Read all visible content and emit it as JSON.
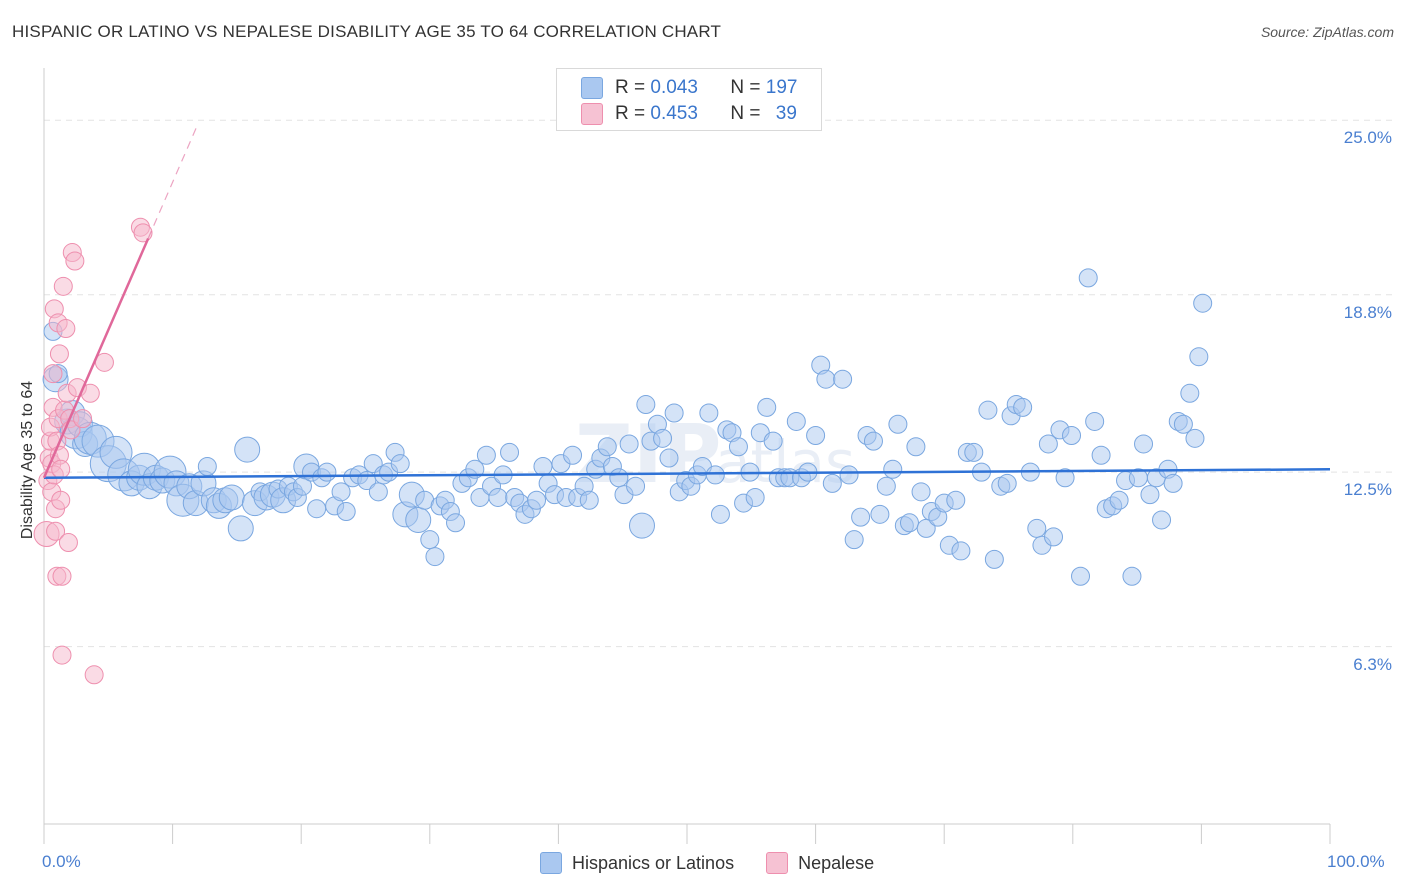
{
  "header": {
    "title": "HISPANIC OR LATINO VS NEPALESE DISABILITY AGE 35 TO 64 CORRELATION CHART",
    "source": "Source: ZipAtlas.com"
  },
  "legend_top": {
    "rows": [
      {
        "r_label": "R =",
        "r_value": "0.043",
        "n_label": "N =",
        "n_value": "197"
      },
      {
        "r_label": "R =",
        "r_value": "0.453",
        "n_label": "N =",
        "n_value": "39"
      }
    ]
  },
  "legend_bottom": {
    "items": [
      "Hispanics or Latinos",
      "Nepalese"
    ]
  },
  "colors": {
    "blue_fill": "#aac8f0",
    "blue_stroke": "#7aa7e0",
    "blue_line": "#2f72d6",
    "pink_fill": "#f6b8cb",
    "pink_stroke": "#ee8fae",
    "pink_line": "#e0689a",
    "tick_text": "#4a7fd0",
    "grid": "#e3e3e3"
  },
  "chart_data": {
    "type": "scatter",
    "title": "HISPANIC OR LATINO VS NEPALESE DISABILITY AGE 35 TO 64 CORRELATION CHART",
    "xlabel": "",
    "ylabel": "Disability Age 35 to 64",
    "xlim": [
      0,
      100
    ],
    "ylim": [
      0,
      26.5
    ],
    "x_ticks": [
      "0.0%",
      "100.0%"
    ],
    "y_ticks": [
      {
        "value": 6.3,
        "label": "6.3%"
      },
      {
        "value": 12.5,
        "label": "12.5%"
      },
      {
        "value": 18.8,
        "label": "18.8%"
      },
      {
        "value": 25.0,
        "label": "25.0%"
      }
    ],
    "grid": true,
    "series": [
      {
        "name": "Hispanics or Latinos",
        "r": 0.043,
        "n": 197,
        "trend": {
          "x0": 0,
          "y0": 12.3,
          "x1": 100,
          "y1": 12.6
        },
        "points": [
          [
            0.7,
            17.5,
            1
          ],
          [
            0.9,
            15.8,
            2
          ],
          [
            1.1,
            16.0,
            1
          ],
          [
            1.8,
            14.3,
            2
          ],
          [
            2.2,
            14.6,
            2
          ],
          [
            2.5,
            13.9,
            3
          ],
          [
            2.8,
            14.2,
            2
          ],
          [
            3.2,
            13.5,
            2
          ],
          [
            3.6,
            13.7,
            3
          ],
          [
            4.2,
            13.6,
            3
          ],
          [
            5.0,
            12.8,
            4
          ],
          [
            5.6,
            13.2,
            3
          ],
          [
            6.2,
            12.4,
            3
          ],
          [
            6.8,
            12.1,
            2
          ],
          [
            7.4,
            12.3,
            2
          ],
          [
            7.8,
            12.6,
            3
          ],
          [
            8.2,
            12.0,
            2
          ],
          [
            8.7,
            12.3,
            2
          ],
          [
            9.2,
            12.2,
            2
          ],
          [
            9.8,
            12.5,
            3
          ],
          [
            10.3,
            12.1,
            2
          ],
          [
            10.8,
            11.5,
            3
          ],
          [
            11.3,
            12.0,
            2
          ],
          [
            11.8,
            11.4,
            2
          ],
          [
            12.4,
            12.1,
            2
          ],
          [
            12.7,
            12.7,
            1
          ],
          [
            13.2,
            11.5,
            2
          ],
          [
            13.6,
            11.3,
            2
          ],
          [
            14.1,
            11.5,
            2
          ],
          [
            14.6,
            11.6,
            2
          ],
          [
            15.3,
            10.5,
            2
          ],
          [
            15.8,
            13.3,
            2
          ],
          [
            16.4,
            11.4,
            2
          ],
          [
            16.8,
            11.8,
            1
          ],
          [
            17.3,
            11.6,
            2
          ],
          [
            17.8,
            11.7,
            2
          ],
          [
            18.2,
            11.9,
            1
          ],
          [
            18.6,
            11.5,
            2
          ],
          [
            19.0,
            12.0,
            1
          ],
          [
            19.4,
            11.8,
            1
          ],
          [
            19.7,
            11.6,
            1
          ],
          [
            20.1,
            12.0,
            1
          ],
          [
            20.4,
            12.7,
            2
          ],
          [
            20.8,
            12.5,
            1
          ],
          [
            21.2,
            11.2,
            1
          ],
          [
            21.6,
            12.3,
            1
          ],
          [
            22.0,
            12.5,
            1
          ],
          [
            22.6,
            11.3,
            1
          ],
          [
            23.1,
            11.8,
            1
          ],
          [
            23.5,
            11.1,
            1
          ],
          [
            24.0,
            12.3,
            1
          ],
          [
            24.5,
            12.4,
            1
          ],
          [
            25.1,
            12.2,
            1
          ],
          [
            25.6,
            12.8,
            1
          ],
          [
            26.0,
            11.8,
            1
          ],
          [
            26.4,
            12.4,
            1
          ],
          [
            26.8,
            12.5,
            1
          ],
          [
            27.3,
            13.2,
            1
          ],
          [
            27.7,
            12.8,
            1
          ],
          [
            28.1,
            11.0,
            2
          ],
          [
            28.6,
            11.7,
            2
          ],
          [
            29.1,
            10.8,
            2
          ],
          [
            29.6,
            11.5,
            1
          ],
          [
            30.0,
            10.1,
            1
          ],
          [
            30.4,
            9.5,
            1
          ],
          [
            30.8,
            11.3,
            1
          ],
          [
            31.2,
            11.5,
            1
          ],
          [
            31.6,
            11.1,
            1
          ],
          [
            32.0,
            10.7,
            1
          ],
          [
            32.5,
            12.1,
            1
          ],
          [
            33.0,
            12.3,
            1
          ],
          [
            33.5,
            12.6,
            1
          ],
          [
            33.9,
            11.6,
            1
          ],
          [
            34.4,
            13.1,
            1
          ],
          [
            34.8,
            12.0,
            1
          ],
          [
            35.3,
            11.6,
            1
          ],
          [
            35.7,
            12.4,
            1
          ],
          [
            36.2,
            13.2,
            1
          ],
          [
            36.6,
            11.6,
            1
          ],
          [
            37.0,
            11.4,
            1
          ],
          [
            37.4,
            11.0,
            1
          ],
          [
            37.9,
            11.2,
            1
          ],
          [
            38.3,
            11.5,
            1
          ],
          [
            38.8,
            12.7,
            1
          ],
          [
            39.2,
            12.1,
            1
          ],
          [
            39.7,
            11.7,
            1
          ],
          [
            40.2,
            12.8,
            1
          ],
          [
            40.6,
            11.6,
            1
          ],
          [
            41.1,
            13.1,
            1
          ],
          [
            41.5,
            11.6,
            1
          ],
          [
            42.0,
            12.0,
            1
          ],
          [
            42.4,
            11.5,
            1
          ],
          [
            42.9,
            12.6,
            1
          ],
          [
            43.3,
            13.0,
            1
          ],
          [
            43.8,
            13.4,
            1
          ],
          [
            44.2,
            12.7,
            1
          ],
          [
            44.7,
            12.3,
            1
          ],
          [
            45.1,
            11.7,
            1
          ],
          [
            45.5,
            13.5,
            1
          ],
          [
            46.0,
            12.0,
            1
          ],
          [
            46.5,
            10.6,
            2
          ],
          [
            46.8,
            14.9,
            1
          ],
          [
            47.2,
            13.6,
            1
          ],
          [
            47.7,
            14.2,
            1
          ],
          [
            48.1,
            13.7,
            1
          ],
          [
            48.6,
            13.0,
            1
          ],
          [
            49.0,
            14.6,
            1
          ],
          [
            49.4,
            11.8,
            1
          ],
          [
            49.9,
            12.2,
            1
          ],
          [
            50.3,
            12.0,
            1
          ],
          [
            50.8,
            12.4,
            1
          ],
          [
            51.2,
            12.7,
            1
          ],
          [
            51.7,
            14.6,
            1
          ],
          [
            52.2,
            12.4,
            1
          ],
          [
            52.6,
            11.0,
            1
          ],
          [
            53.1,
            14.0,
            1
          ],
          [
            53.5,
            13.9,
            1
          ],
          [
            54.0,
            13.4,
            1
          ],
          [
            54.4,
            11.4,
            1
          ],
          [
            54.9,
            12.5,
            1
          ],
          [
            55.3,
            11.6,
            1
          ],
          [
            55.7,
            13.9,
            1
          ],
          [
            56.2,
            14.8,
            1
          ],
          [
            56.7,
            13.6,
            1
          ],
          [
            57.1,
            12.3,
            1
          ],
          [
            57.6,
            12.3,
            1
          ],
          [
            58.0,
            12.3,
            1
          ],
          [
            58.5,
            14.3,
            1
          ],
          [
            58.9,
            12.3,
            1
          ],
          [
            59.4,
            12.5,
            1
          ],
          [
            60.0,
            13.8,
            1
          ],
          [
            60.4,
            16.3,
            1
          ],
          [
            60.8,
            15.8,
            1
          ],
          [
            61.3,
            12.1,
            1
          ],
          [
            62.1,
            15.8,
            1
          ],
          [
            62.6,
            12.4,
            1
          ],
          [
            63.0,
            10.1,
            1
          ],
          [
            63.5,
            10.9,
            1
          ],
          [
            64.0,
            13.8,
            1
          ],
          [
            64.5,
            13.6,
            1
          ],
          [
            65.0,
            11.0,
            1
          ],
          [
            65.5,
            12.0,
            1
          ],
          [
            66.0,
            12.6,
            1
          ],
          [
            66.4,
            14.2,
            1
          ],
          [
            66.9,
            10.6,
            1
          ],
          [
            67.3,
            10.7,
            1
          ],
          [
            67.8,
            13.4,
            1
          ],
          [
            68.2,
            11.8,
            1
          ],
          [
            68.6,
            10.5,
            1
          ],
          [
            69.0,
            11.1,
            1
          ],
          [
            69.5,
            10.9,
            1
          ],
          [
            70.0,
            11.4,
            1
          ],
          [
            70.4,
            9.9,
            1
          ],
          [
            70.9,
            11.5,
            1
          ],
          [
            71.3,
            9.7,
            1
          ],
          [
            71.8,
            13.2,
            1
          ],
          [
            72.3,
            13.2,
            1
          ],
          [
            72.9,
            12.5,
            1
          ],
          [
            73.4,
            14.7,
            1
          ],
          [
            73.9,
            9.4,
            1
          ],
          [
            74.4,
            12.0,
            1
          ],
          [
            74.9,
            12.1,
            1
          ],
          [
            75.2,
            14.5,
            1
          ],
          [
            75.6,
            14.9,
            1
          ],
          [
            76.1,
            14.8,
            1
          ],
          [
            76.7,
            12.5,
            1
          ],
          [
            77.2,
            10.5,
            1
          ],
          [
            77.6,
            9.9,
            1
          ],
          [
            78.1,
            13.5,
            1
          ],
          [
            78.5,
            10.2,
            1
          ],
          [
            79.0,
            14.0,
            1
          ],
          [
            79.4,
            12.3,
            1
          ],
          [
            79.9,
            13.8,
            1
          ],
          [
            80.6,
            8.8,
            1
          ],
          [
            81.2,
            19.4,
            1
          ],
          [
            81.7,
            14.3,
            1
          ],
          [
            82.2,
            13.1,
            1
          ],
          [
            82.6,
            11.2,
            1
          ],
          [
            83.1,
            11.3,
            1
          ],
          [
            83.6,
            11.5,
            1
          ],
          [
            84.1,
            12.2,
            1
          ],
          [
            84.6,
            8.8,
            1
          ],
          [
            85.1,
            12.3,
            1
          ],
          [
            85.5,
            13.5,
            1
          ],
          [
            86.0,
            11.7,
            1
          ],
          [
            86.5,
            12.3,
            1
          ],
          [
            86.9,
            10.8,
            1
          ],
          [
            87.4,
            12.6,
            1
          ],
          [
            87.8,
            12.1,
            1
          ],
          [
            88.2,
            14.3,
            1
          ],
          [
            88.6,
            14.2,
            1
          ],
          [
            89.1,
            15.3,
            1
          ],
          [
            89.5,
            13.7,
            1
          ],
          [
            90.1,
            18.5,
            1
          ],
          [
            89.8,
            16.6,
            1
          ]
        ]
      },
      {
        "name": "Nepalese",
        "r": 0.453,
        "n": 39,
        "trend": {
          "x0": 0,
          "y0": 12.3,
          "x1": 8.1,
          "y1": 20.8,
          "dashed_to_x": 12.0,
          "dashed_to_y": 24.9
        },
        "points": [
          [
            0.2,
            10.3,
            2
          ],
          [
            0.3,
            12.2,
            1
          ],
          [
            0.4,
            13.0,
            1
          ],
          [
            0.5,
            13.6,
            1
          ],
          [
            0.5,
            14.1,
            1
          ],
          [
            0.6,
            12.8,
            1
          ],
          [
            0.6,
            11.8,
            1
          ],
          [
            0.7,
            14.8,
            1
          ],
          [
            0.7,
            16.0,
            1
          ],
          [
            0.8,
            18.3,
            1
          ],
          [
            0.8,
            12.4,
            1
          ],
          [
            0.9,
            11.2,
            1
          ],
          [
            0.9,
            10.4,
            1
          ],
          [
            1.0,
            8.8,
            1
          ],
          [
            1.0,
            13.6,
            1
          ],
          [
            1.1,
            17.8,
            1
          ],
          [
            1.1,
            14.4,
            1
          ],
          [
            1.2,
            16.7,
            1
          ],
          [
            1.2,
            13.1,
            1
          ],
          [
            1.3,
            12.6,
            1
          ],
          [
            1.3,
            11.5,
            1
          ],
          [
            1.4,
            8.8,
            1
          ],
          [
            1.5,
            19.1,
            1
          ],
          [
            1.6,
            14.7,
            1
          ],
          [
            1.7,
            17.6,
            1
          ],
          [
            1.8,
            15.3,
            1
          ],
          [
            1.9,
            10.0,
            1
          ],
          [
            2.0,
            14.4,
            1
          ],
          [
            2.1,
            14.0,
            1
          ],
          [
            2.2,
            20.3,
            1
          ],
          [
            2.4,
            20.0,
            1
          ],
          [
            2.6,
            15.5,
            1
          ],
          [
            3.0,
            14.4,
            1
          ],
          [
            3.6,
            15.3,
            1
          ],
          [
            4.7,
            16.4,
            1
          ],
          [
            7.5,
            21.2,
            1
          ],
          [
            7.7,
            21.0,
            1
          ],
          [
            1.4,
            6.0,
            1
          ],
          [
            3.9,
            5.3,
            1
          ]
        ]
      }
    ]
  }
}
